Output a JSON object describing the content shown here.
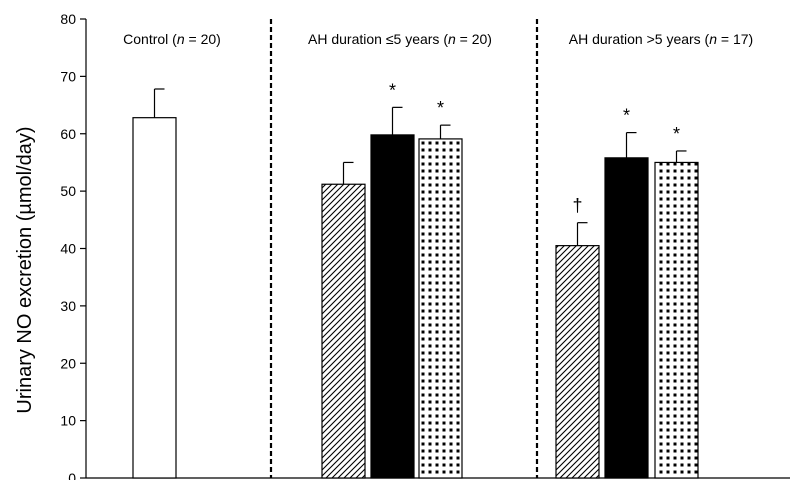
{
  "chart_data": {
    "type": "bar",
    "ylabel": "Urinary NO excretion (µmol/day)",
    "xlabel": "",
    "ylim": [
      0,
      80
    ],
    "yticks": [
      0,
      10,
      20,
      30,
      40,
      50,
      60,
      70,
      80
    ],
    "grid": false,
    "groups": [
      {
        "label_parts": [
          {
            "text": "Control (",
            "italic": false
          },
          {
            "text": "n",
            "italic": true
          },
          {
            "text": " = 20)",
            "italic": false
          }
        ],
        "bars": [
          {
            "value": 62.8,
            "error": 5.0,
            "pattern": "white",
            "annotation": ""
          }
        ]
      },
      {
        "label_parts": [
          {
            "text": "AH duration ≤5 years (",
            "italic": false
          },
          {
            "text": "n",
            "italic": true
          },
          {
            "text": " = 20)",
            "italic": false
          }
        ],
        "bars": [
          {
            "value": 51.2,
            "error": 3.8,
            "pattern": "hatched",
            "annotation": ""
          },
          {
            "value": 59.8,
            "error": 4.8,
            "pattern": "black",
            "annotation": "*"
          },
          {
            "value": 59.1,
            "error": 2.4,
            "pattern": "dotted",
            "annotation": "*"
          }
        ]
      },
      {
        "label_parts": [
          {
            "text": "AH duration >5 years (",
            "italic": false
          },
          {
            "text": "n",
            "italic": true
          },
          {
            "text": " = 17)",
            "italic": false
          }
        ],
        "bars": [
          {
            "value": 40.5,
            "error": 4.0,
            "pattern": "hatched",
            "annotation": "†"
          },
          {
            "value": 55.8,
            "error": 4.4,
            "pattern": "black",
            "annotation": "*"
          },
          {
            "value": 55.0,
            "error": 2.0,
            "pattern": "dotted",
            "annotation": "*"
          }
        ]
      }
    ]
  }
}
